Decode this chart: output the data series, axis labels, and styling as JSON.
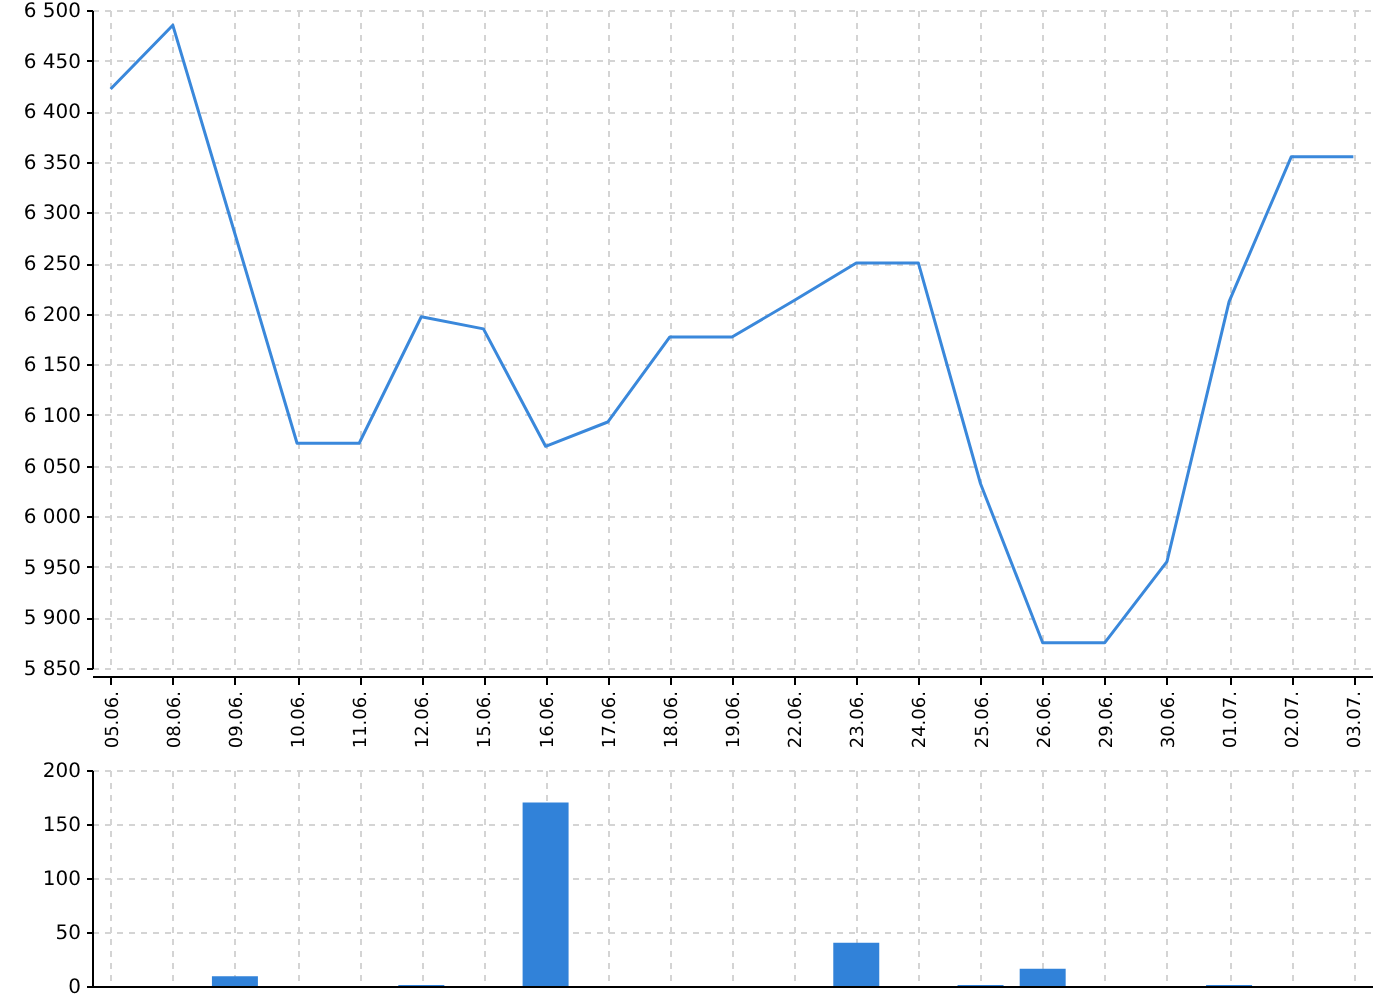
{
  "chart_data": [
    {
      "type": "line",
      "categories": [
        "05.06.",
        "08.06.",
        "09.06.",
        "10.06.",
        "11.06.",
        "12.06.",
        "15.06.",
        "16.06.",
        "17.06.",
        "18.06.",
        "19.06.",
        "22.06.",
        "23.06.",
        "24.06.",
        "25.06.",
        "26.06.",
        "29.06.",
        "30.06.",
        "01.07.",
        "02.07.",
        "03.07."
      ],
      "series": [
        {
          "color": "#3a88db",
          "values": [
            6422,
            6485,
            6279,
            6072,
            6072,
            6197,
            6185,
            6069,
            6093,
            6177,
            6177,
            6213,
            6250,
            6250,
            6032,
            5875,
            5875,
            5955,
            6212,
            6355,
            6355
          ]
        }
      ],
      "ylim": [
        5850,
        6500
      ],
      "yticks": [
        {
          "value": 5850,
          "label": "5 850"
        },
        {
          "value": 5900,
          "label": "5 900"
        },
        {
          "value": 5950,
          "label": "5 950"
        },
        {
          "value": 6000,
          "label": "6 000"
        },
        {
          "value": 6050,
          "label": "6 050"
        },
        {
          "value": 6100,
          "label": "6 100"
        },
        {
          "value": 6150,
          "label": "6 150"
        },
        {
          "value": 6200,
          "label": "6 200"
        },
        {
          "value": 6250,
          "label": "6 250"
        },
        {
          "value": 6300,
          "label": "6 300"
        },
        {
          "value": 6350,
          "label": "6 350"
        },
        {
          "value": 6400,
          "label": "6 400"
        },
        {
          "value": 6450,
          "label": "6 450"
        },
        {
          "value": 6500,
          "label": "6 500"
        }
      ],
      "grid": true
    },
    {
      "type": "bar",
      "categories": [
        "05.06.",
        "08.06.",
        "09.06.",
        "10.06.",
        "11.06.",
        "12.06.",
        "15.06.",
        "16.06.",
        "17.06.",
        "18.06.",
        "19.06.",
        "22.06.",
        "23.06.",
        "24.06.",
        "25.06.",
        "26.06.",
        "29.06.",
        "30.06.",
        "01.07.",
        "02.07.",
        "03.07."
      ],
      "values": [
        null,
        null,
        9,
        null,
        null,
        1,
        null,
        170,
        null,
        null,
        null,
        null,
        40,
        null,
        1,
        16,
        null,
        null,
        1,
        null,
        null
      ],
      "color": "#3182d9",
      "ylim": [
        0,
        200
      ],
      "yticks": [
        0,
        50,
        100,
        150,
        200
      ],
      "grid": true,
      "tick_labels": "y"
    }
  ]
}
